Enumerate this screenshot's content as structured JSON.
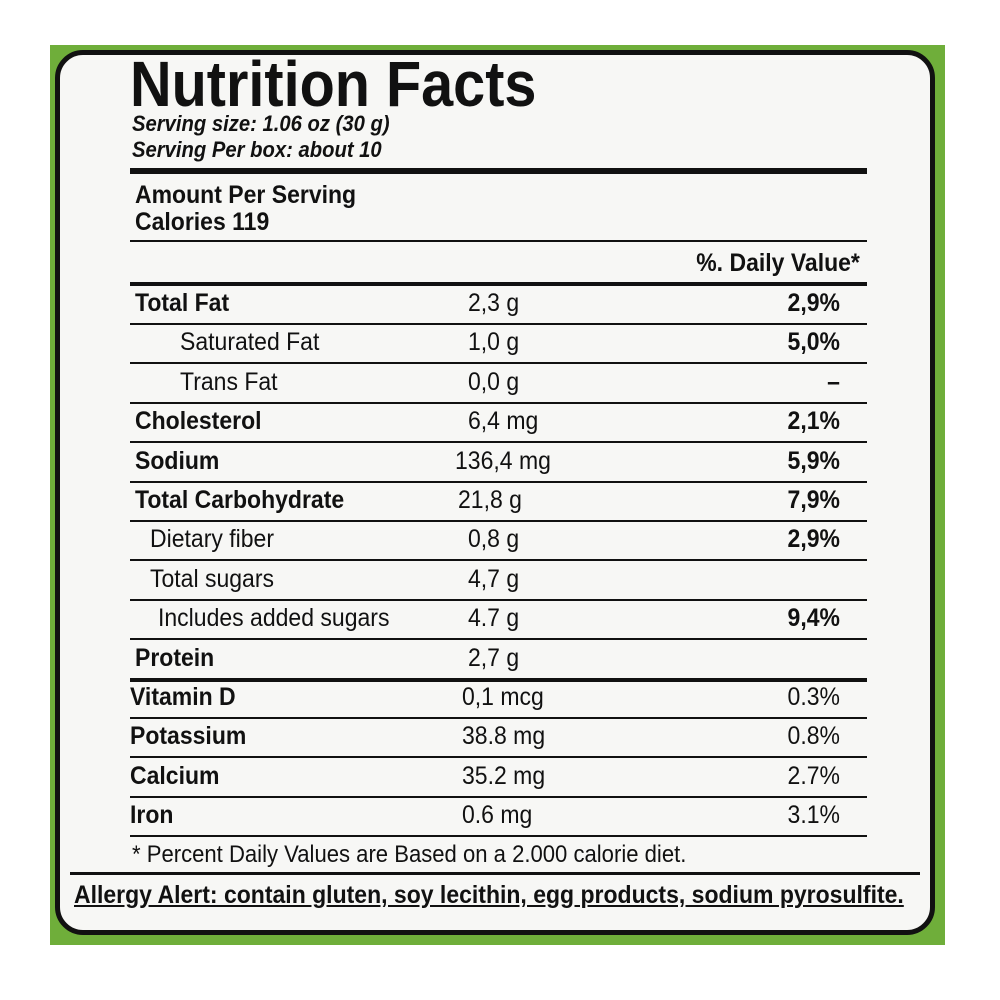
{
  "header": {
    "title": "Nutrition Facts",
    "serving_size": "Serving size: 1.06 oz (30 g)",
    "servings_per_box": "Serving Per box: about 10"
  },
  "amount_per_serving": "Amount Per Serving",
  "calories": "Calories 119",
  "daily_value_header": "%. Daily Value*",
  "rows": [
    {
      "name": "Total Fat",
      "amount": "2,3 g",
      "daily_value": "2,9%"
    },
    {
      "name": "Saturated Fat",
      "amount": "1,0 g",
      "daily_value": "5,0%"
    },
    {
      "name": "Trans Fat",
      "amount": "0,0 g",
      "daily_value": "–"
    },
    {
      "name": "Cholesterol",
      "amount": "6,4 mg",
      "daily_value": "2,1%"
    },
    {
      "name": "Sodium",
      "amount": "136,4 mg",
      "daily_value": "5,9%"
    },
    {
      "name": "Total Carbohydrate",
      "amount": "21,8 g",
      "daily_value": "7,9%"
    },
    {
      "name": "Dietary fiber",
      "amount": "0,8 g",
      "daily_value": "2,9%"
    },
    {
      "name": "Total sugars",
      "amount": "4,7 g"
    },
    {
      "name": "Includes added sugars",
      "amount": "4.7 g",
      "daily_value": "9,4%"
    },
    {
      "name": "Protein",
      "amount": "2,7 g"
    },
    {
      "name": "Vitamin D",
      "amount": "0,1 mcg",
      "daily_value": "0.3%"
    },
    {
      "name": "Potassium",
      "amount": "38.8 mg",
      "daily_value": "0.8%"
    },
    {
      "name": "Calcium",
      "amount": "35.2 mg",
      "daily_value": "2.7%"
    },
    {
      "name": "Iron",
      "amount": "0.6 mg",
      "daily_value": "3.1%"
    }
  ],
  "footnote": "* Percent Daily Values are Based on a 2.000 calorie diet.",
  "allergy_alert": "Allergy Alert: contain gluten, soy lecithin, egg products, sodium pyrosulfite."
}
